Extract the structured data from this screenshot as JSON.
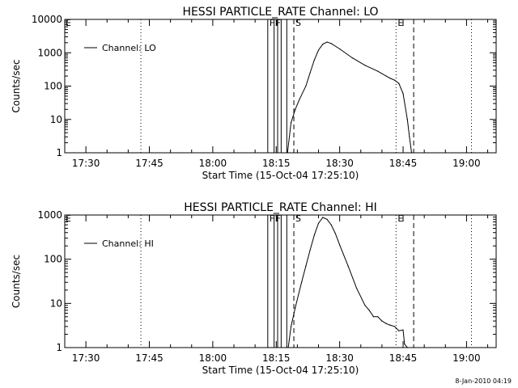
{
  "footer_timestamp": "8-Jan-2010 04:19",
  "chart_data": [
    {
      "type": "line",
      "title": "HESSI PARTICLE_RATE Channel: LO",
      "xlabel": "Start Time (15-Oct-04 17:25:10)",
      "ylabel": "Counts/sec",
      "y_scale": "log",
      "xlim": [
        "17:25",
        "19:07"
      ],
      "ylim": [
        1,
        10000
      ],
      "x_ticks": [
        "17:30",
        "17:45",
        "18:00",
        "18:15",
        "18:30",
        "18:45",
        "19:00"
      ],
      "y_ticks": [
        "1",
        "10",
        "100",
        "1000",
        "10000"
      ],
      "legend": {
        "placement": "top-left",
        "entries": [
          "Channel: LO"
        ]
      },
      "series": [
        {
          "name": "Channel: LO",
          "x": [
            "18:17:40",
            "18:18:30",
            "18:19:30",
            "18:20:30",
            "18:22:00",
            "18:23:00",
            "18:24:00",
            "18:25:00",
            "18:26:00",
            "18:27:00",
            "18:28:00",
            "18:30:00",
            "18:33:00",
            "18:36:00",
            "18:39:00",
            "18:41:00",
            "18:42:00",
            "18:43:00",
            "18:44:00",
            "18:45:00",
            "18:46:00",
            "18:46:30",
            "18:47:00"
          ],
          "values": [
            1,
            8,
            20,
            40,
            100,
            250,
            600,
            1200,
            1800,
            2100,
            1900,
            1300,
            700,
            420,
            280,
            200,
            170,
            150,
            120,
            60,
            10,
            3,
            1
          ]
        }
      ],
      "vertical_lines": [
        {
          "label": "",
          "x": "17:43",
          "style": "dotted"
        },
        {
          "label": "F",
          "x": "18:13:00",
          "style": "solid"
        },
        {
          "label": "F",
          "x": "18:14:30",
          "style": "solid"
        },
        {
          "label": "",
          "x": "18:15:20",
          "style": "solid"
        },
        {
          "label": "",
          "x": "18:16:10",
          "style": "solid"
        },
        {
          "label": "",
          "x": "18:17:30",
          "style": "solid"
        },
        {
          "label": "S",
          "x": "18:19:10",
          "style": "dashed"
        },
        {
          "label": "E",
          "x": "18:43:20",
          "style": "dotted"
        },
        {
          "label": "",
          "x": "18:47:30",
          "style": "dashed"
        },
        {
          "label": "",
          "x": "19:01:10",
          "style": "dotted"
        }
      ],
      "top_left_marker": "E"
    },
    {
      "type": "line",
      "title": "HESSI PARTICLE_RATE Channel: HI",
      "xlabel": "Start Time (15-Oct-04 17:25:10)",
      "ylabel": "Counts/sec",
      "y_scale": "log",
      "xlim": [
        "17:25",
        "19:07"
      ],
      "ylim": [
        1,
        1000
      ],
      "x_ticks": [
        "17:30",
        "17:45",
        "18:00",
        "18:15",
        "18:30",
        "18:45",
        "19:00"
      ],
      "y_ticks": [
        "1",
        "10",
        "100",
        "1000"
      ],
      "legend": {
        "placement": "top-left",
        "entries": [
          "Channel: HI"
        ]
      },
      "series": [
        {
          "name": "Channel: HI",
          "x": [
            "18:17:50",
            "18:18:30",
            "18:19:30",
            "18:21:00",
            "18:22:00",
            "18:23:00",
            "18:24:00",
            "18:25:00",
            "18:26:00",
            "18:27:00",
            "18:28:00",
            "18:29:00",
            "18:30:00",
            "18:32:00",
            "18:34:00",
            "18:36:00",
            "18:37:00",
            "18:38:00",
            "18:39:00",
            "18:40:00",
            "18:41:00",
            "18:42:00",
            "18:43:00",
            "18:44:00",
            "18:45:00",
            "18:45:20",
            "18:46:00"
          ],
          "values": [
            1,
            3,
            8,
            30,
            70,
            160,
            350,
            650,
            880,
            800,
            600,
            380,
            210,
            70,
            22,
            9,
            7,
            5,
            5,
            4,
            3.5,
            3.2,
            3,
            2.4,
            2.5,
            1.2,
            1
          ]
        }
      ],
      "vertical_lines": [
        {
          "label": "",
          "x": "17:43",
          "style": "dotted"
        },
        {
          "label": "F",
          "x": "18:13:00",
          "style": "solid"
        },
        {
          "label": "F",
          "x": "18:14:30",
          "style": "solid"
        },
        {
          "label": "",
          "x": "18:15:20",
          "style": "solid"
        },
        {
          "label": "",
          "x": "18:16:10",
          "style": "solid"
        },
        {
          "label": "",
          "x": "18:17:30",
          "style": "solid"
        },
        {
          "label": "S",
          "x": "18:19:10",
          "style": "dashed"
        },
        {
          "label": "E",
          "x": "18:43:20",
          "style": "dotted"
        },
        {
          "label": "",
          "x": "18:47:30",
          "style": "dashed"
        },
        {
          "label": "",
          "x": "19:01:10",
          "style": "dotted"
        }
      ],
      "top_left_marker": "E"
    }
  ]
}
